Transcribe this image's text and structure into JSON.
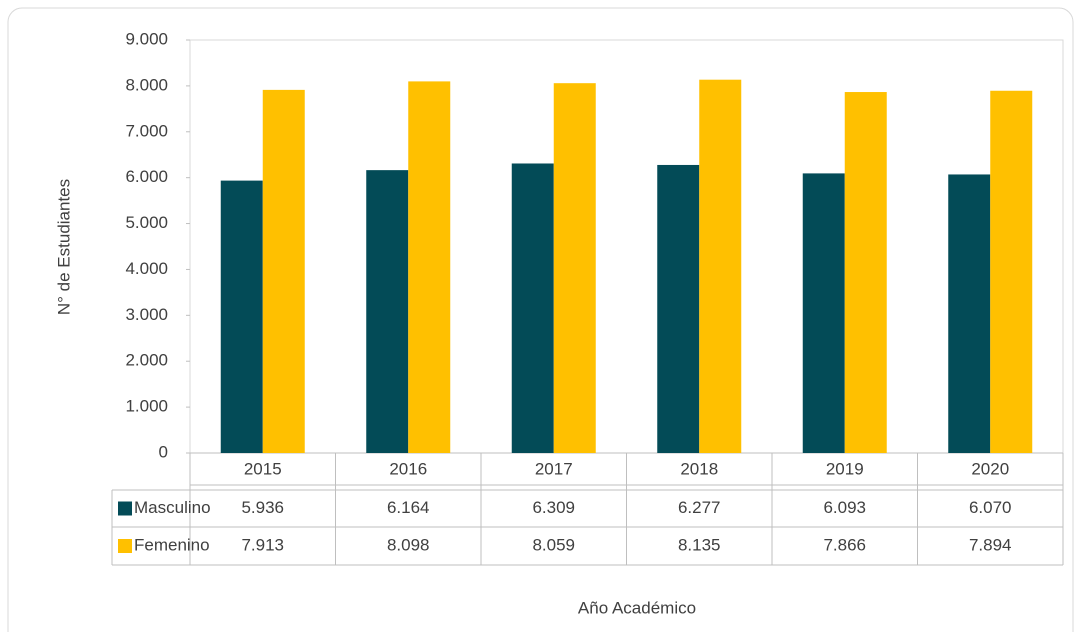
{
  "chart_data": {
    "type": "bar",
    "y_label": "N° de Estudiantes",
    "x_label": "Año Académico",
    "categories": [
      "2015",
      "2016",
      "2017",
      "2018",
      "2019",
      "2020"
    ],
    "series": [
      {
        "name": "Masculino",
        "color": "#034b57",
        "values": [
          5936,
          6164,
          6309,
          6277,
          6093,
          6070
        ],
        "value_labels": [
          "5.936",
          "6.164",
          "6.309",
          "6.277",
          "6.093",
          "6.070"
        ]
      },
      {
        "name": "Femenino",
        "color": "#ffc000",
        "values": [
          7913,
          8098,
          8059,
          8135,
          7866,
          7894
        ],
        "value_labels": [
          "7.913",
          "8.098",
          "8.059",
          "8.135",
          "7.866",
          "7.894"
        ]
      }
    ],
    "ylim": [
      0,
      9000
    ],
    "yticks": [
      0,
      {
        "value": 1000,
        "label": "1.000"
      },
      {
        "value": 2000,
        "label": "2.000"
      },
      {
        "value": 3000,
        "label": "3.000"
      },
      {
        "value": 4000,
        "label": "4.000"
      },
      {
        "value": 5000,
        "label": "5.000"
      },
      {
        "value": 6000,
        "label": "6.000"
      },
      {
        "value": 7000,
        "label": "7.000"
      },
      {
        "value": 8000,
        "label": "8.000"
      },
      {
        "value": 9000,
        "label": "9.000"
      }
    ],
    "grid": false
  }
}
